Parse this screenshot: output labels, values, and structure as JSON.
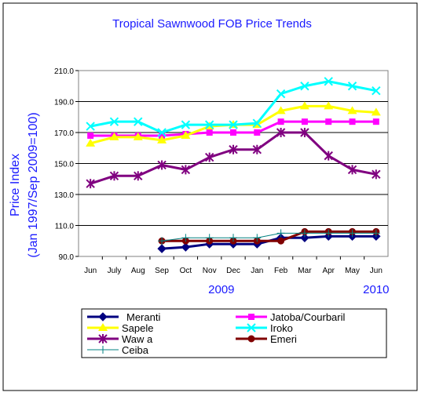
{
  "chart_data": {
    "type": "line",
    "title": "Tropical Sawnwood FOB Price Trends",
    "ylabel_lines": [
      "Price Index",
      "(Jan 1997/Sep 2009=100)"
    ],
    "categories": [
      "Jun",
      "July",
      "Aug",
      "Sep",
      "Oct",
      "Nov",
      "Dec",
      "Jan",
      "Feb",
      "Mar",
      "Apr",
      "May",
      "Jun"
    ],
    "year_labels": [
      {
        "text": "2009",
        "category_index": 5.5
      },
      {
        "text": "2010",
        "category_index": 12
      }
    ],
    "ylim": [
      90,
      210
    ],
    "yticks": [
      {
        "value": 90,
        "label": "90.0"
      },
      {
        "value": 110,
        "label": "110.0"
      },
      {
        "value": 130,
        "label": "130.0"
      },
      {
        "value": 150,
        "label": "150.0"
      },
      {
        "value": 170,
        "label": "170.0"
      },
      {
        "value": 190,
        "label": "190.0"
      },
      {
        "value": 210,
        "label": "210.0"
      }
    ],
    "grid": true,
    "legend_position": "bottom",
    "series": [
      {
        "name": "Meranti",
        "color": "#000080",
        "marker": "diamond",
        "values": [
          null,
          null,
          null,
          95,
          96,
          98,
          98,
          98,
          102,
          102,
          103,
          103,
          103
        ]
      },
      {
        "name": "Jatoba/Courbaril",
        "color": "#ff00ff",
        "marker": "square",
        "values": [
          168,
          168,
          168,
          168,
          169,
          170,
          170,
          170,
          177,
          177,
          177,
          177,
          177
        ]
      },
      {
        "name": "Sapele",
        "color": "#ffff00",
        "marker": "triangle",
        "values": [
          163,
          167,
          167,
          165,
          168,
          174,
          175,
          175,
          184,
          187,
          187,
          184,
          183
        ]
      },
      {
        "name": "Iroko",
        "color": "#00ffff",
        "marker": "x",
        "values": [
          174,
          177,
          177,
          170,
          175,
          175,
          175,
          176,
          195,
          200,
          203,
          200,
          197
        ]
      },
      {
        "name": "Waw a",
        "color": "#800080",
        "marker": "star",
        "values": [
          137,
          142,
          142,
          149,
          146,
          154,
          159,
          159,
          170,
          170,
          155,
          146,
          143
        ]
      },
      {
        "name": "Emeri",
        "color": "#800000",
        "marker": "circle",
        "values": [
          null,
          null,
          null,
          100,
          100,
          100,
          100,
          100,
          100,
          106,
          106,
          106,
          106
        ]
      },
      {
        "name": "Ceiba",
        "color": "#008080",
        "marker": "plus",
        "values": [
          null,
          null,
          null,
          100,
          102,
          102,
          102,
          102,
          105,
          105,
          105,
          105,
          105
        ]
      }
    ]
  }
}
